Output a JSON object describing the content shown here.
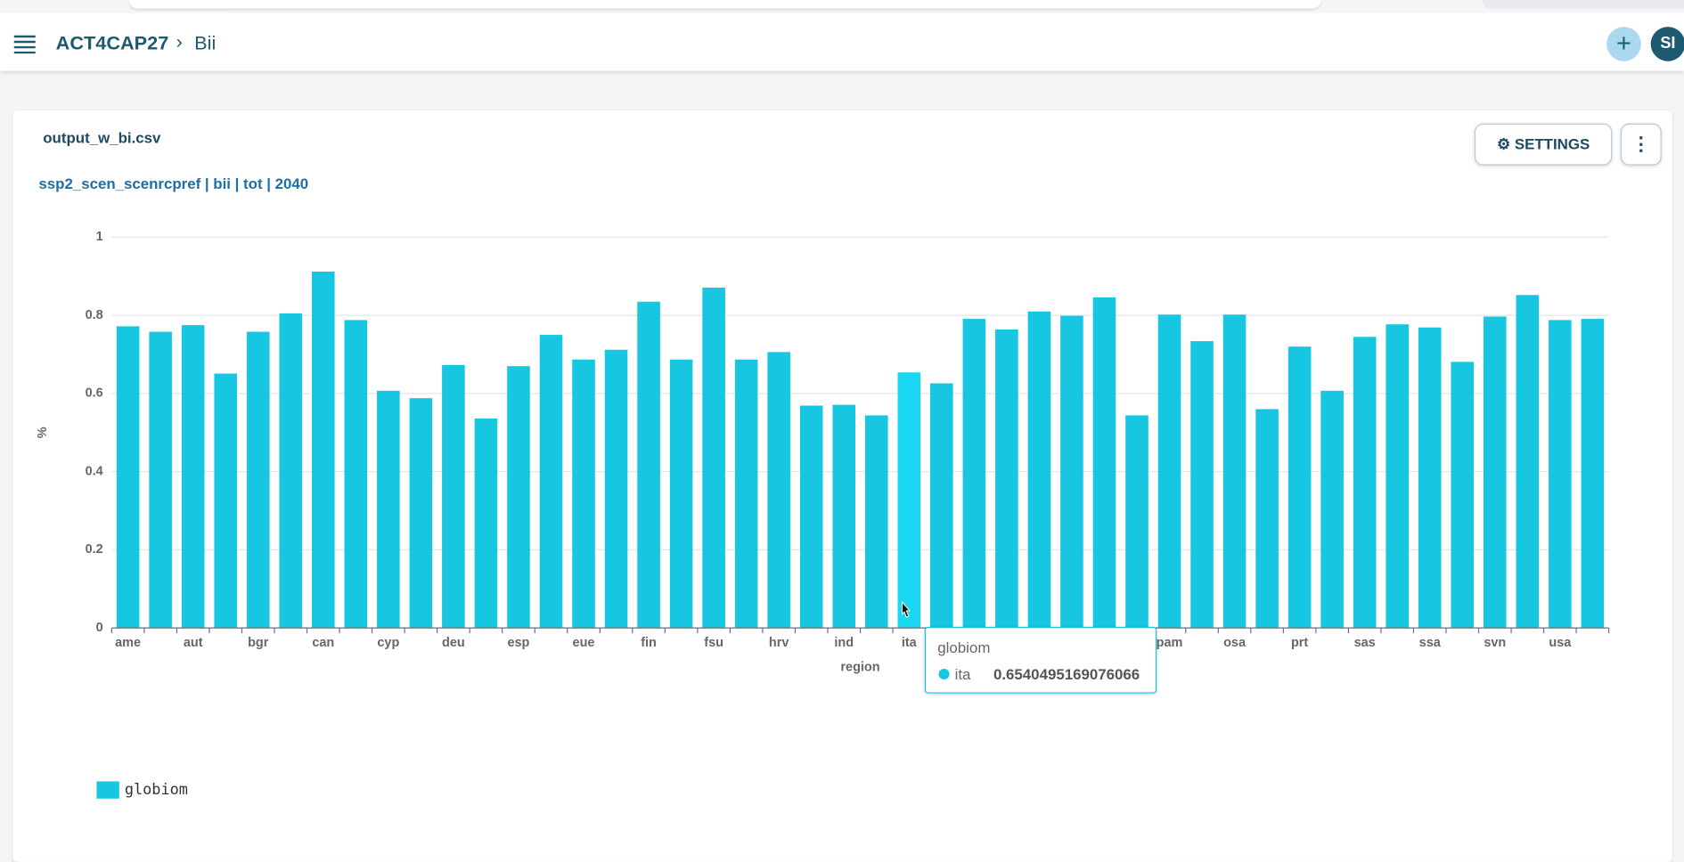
{
  "header": {
    "project": "ACT4CAP27",
    "page": "Bii",
    "avatar": "SI"
  },
  "card": {
    "file": "output_w_bi.csv",
    "settings_button": "SETTINGS"
  },
  "chart_data": {
    "type": "bar",
    "title": "ssp2_scen_scenrcpref | bii | tot | 2040",
    "y_label": "%",
    "x_label": "region",
    "categories": [
      "ame",
      null,
      "aut",
      null,
      "bgr",
      null,
      "can",
      null,
      "cyp",
      null,
      "deu",
      null,
      "esp",
      null,
      "eue",
      null,
      "fin",
      null,
      "fsu",
      null,
      "hrv",
      null,
      "ind",
      null,
      "ita",
      null,
      null,
      null,
      null,
      null,
      null,
      null,
      "pam",
      null,
      "osa",
      null,
      "prt",
      null,
      "sas",
      null,
      "ssa",
      null,
      "svn",
      null,
      "usa",
      null
    ],
    "series": [
      {
        "name": "globiom",
        "color": "#17c6e0",
        "values": [
          0.772,
          0.758,
          0.775,
          0.651,
          0.758,
          0.805,
          0.912,
          0.788,
          0.607,
          0.588,
          0.673,
          0.536,
          0.67,
          0.75,
          0.687,
          0.712,
          0.835,
          0.687,
          0.871,
          0.687,
          0.706,
          0.569,
          0.571,
          0.544,
          0.6540495169076066,
          0.626,
          0.791,
          0.764,
          0.81,
          0.799,
          0.846,
          0.544,
          0.802,
          0.734,
          0.802,
          0.56,
          0.72,
          0.607,
          0.745,
          0.777,
          0.769,
          0.681,
          0.797,
          0.852,
          0.788,
          0.791
        ]
      }
    ],
    "ylim": [
      0,
      1
    ],
    "yticks": [
      0,
      0.2,
      0.4,
      0.6,
      0.8,
      1
    ],
    "grid": true
  }
}
